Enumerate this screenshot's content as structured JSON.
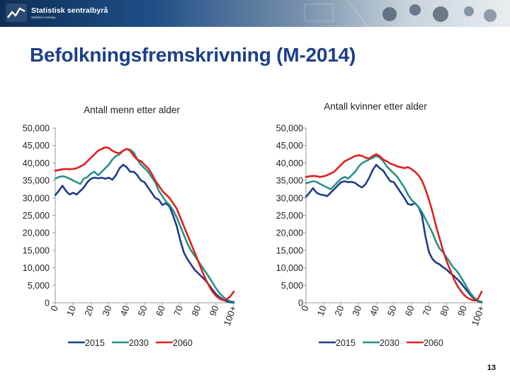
{
  "header": {
    "org_name": "Statistisk sentralbyrå",
    "org_sub": "Statistics Norway"
  },
  "slide": {
    "title": "Befolkningsfremskrivning (M-2014)",
    "page_number": "13"
  },
  "colors": {
    "title": "#1c3f8a",
    "series_2015": "#1f3c8c",
    "series_2030": "#2a9188",
    "series_2060": "#e0201b",
    "axis": "#9a9a9a"
  },
  "chart_data": [
    {
      "type": "line",
      "title": "Antall menn etter alder",
      "xlabel": "",
      "ylabel": "",
      "x_range": [
        0,
        100
      ],
      "x_tick_labels": [
        "0",
        "10",
        "20",
        "30",
        "40",
        "50",
        "60",
        "70",
        "80",
        "90",
        "100+"
      ],
      "ylim": [
        0,
        50000
      ],
      "y_tick_labels": [
        "0",
        "5,000",
        "10,000",
        "15,000",
        "20,000",
        "25,000",
        "30,000",
        "35,000",
        "40,000",
        "45,000",
        "50,000"
      ],
      "grid": false,
      "legend": [
        "2015",
        "2030",
        "2060"
      ],
      "legend_position": "bottom",
      "series": [
        {
          "name": "2015",
          "x": [
            0,
            2,
            4,
            6,
            8,
            10,
            12,
            14,
            16,
            18,
            20,
            22,
            24,
            26,
            28,
            30,
            32,
            34,
            36,
            38,
            40,
            42,
            44,
            46,
            48,
            50,
            52,
            54,
            56,
            58,
            60,
            62,
            64,
            66,
            68,
            70,
            72,
            74,
            76,
            78,
            80,
            82,
            84,
            86,
            88,
            90,
            92,
            94,
            96,
            98,
            100
          ],
          "y": [
            30800,
            32000,
            33500,
            32000,
            31000,
            31500,
            31000,
            32000,
            33000,
            34500,
            35500,
            35800,
            35600,
            35800,
            35500,
            35800,
            35200,
            36500,
            38500,
            39500,
            38800,
            37500,
            37500,
            36500,
            35000,
            34500,
            33000,
            31500,
            30000,
            29500,
            28000,
            28500,
            27500,
            25000,
            22000,
            18000,
            14500,
            12500,
            11000,
            9500,
            8500,
            7500,
            6500,
            5200,
            3800,
            2500,
            1600,
            900,
            400,
            150,
            60
          ]
        },
        {
          "name": "2030",
          "x": [
            0,
            2,
            4,
            6,
            8,
            10,
            12,
            14,
            16,
            18,
            20,
            22,
            24,
            26,
            28,
            30,
            32,
            34,
            36,
            38,
            40,
            42,
            44,
            46,
            48,
            50,
            52,
            54,
            56,
            58,
            60,
            62,
            64,
            66,
            68,
            70,
            72,
            74,
            76,
            78,
            80,
            82,
            84,
            86,
            88,
            90,
            92,
            94,
            96,
            98,
            100
          ],
          "y": [
            35500,
            36000,
            36200,
            36000,
            35500,
            35000,
            34500,
            34000,
            35500,
            36000,
            37000,
            37500,
            36500,
            37500,
            38500,
            39500,
            41000,
            42000,
            42500,
            43500,
            44000,
            43800,
            43000,
            41000,
            39500,
            38500,
            37500,
            36000,
            34500,
            32000,
            30500,
            29000,
            28000,
            26500,
            24500,
            22000,
            19500,
            17000,
            15000,
            13500,
            12000,
            10500,
            9000,
            7500,
            5800,
            4200,
            2800,
            1700,
            900,
            450,
            300
          ]
        },
        {
          "name": "2060",
          "x": [
            0,
            2,
            4,
            6,
            8,
            10,
            12,
            14,
            16,
            18,
            20,
            22,
            24,
            26,
            28,
            30,
            32,
            34,
            36,
            38,
            40,
            42,
            44,
            46,
            48,
            50,
            52,
            54,
            56,
            58,
            60,
            62,
            64,
            66,
            68,
            70,
            72,
            74,
            76,
            78,
            80,
            82,
            84,
            86,
            88,
            90,
            92,
            94,
            96,
            98,
            100
          ],
          "y": [
            37800,
            38000,
            38200,
            38300,
            38200,
            38300,
            38500,
            39000,
            39500,
            40500,
            41500,
            42500,
            43500,
            44000,
            44500,
            44300,
            43500,
            43000,
            42800,
            43500,
            44000,
            43500,
            42000,
            41000,
            40500,
            39500,
            38500,
            37000,
            35000,
            33500,
            32000,
            31000,
            30000,
            28500,
            27000,
            24500,
            22000,
            19500,
            17000,
            14500,
            12000,
            9500,
            7000,
            5000,
            3200,
            2000,
            1200,
            700,
            1000,
            1800,
            3200
          ]
        }
      ]
    },
    {
      "type": "line",
      "title": "Antall kvinner etter alder",
      "xlabel": "",
      "ylabel": "",
      "x_range": [
        0,
        100
      ],
      "x_tick_labels": [
        "0",
        "10",
        "20",
        "30",
        "40",
        "50",
        "60",
        "70",
        "80",
        "90",
        "100+"
      ],
      "ylim": [
        0,
        50000
      ],
      "y_tick_labels": [
        "0",
        "5,000",
        "10,000",
        "15,000",
        "20,000",
        "25,000",
        "30,000",
        "35,000",
        "40,000",
        "45,000",
        "50,000"
      ],
      "grid": false,
      "legend": [
        "2015",
        "2030",
        "2060"
      ],
      "legend_position": "bottom",
      "series": [
        {
          "name": "2015",
          "x": [
            0,
            2,
            4,
            6,
            8,
            10,
            12,
            14,
            16,
            18,
            20,
            22,
            24,
            26,
            28,
            30,
            32,
            34,
            36,
            38,
            40,
            42,
            44,
            46,
            48,
            50,
            52,
            54,
            56,
            58,
            60,
            62,
            64,
            66,
            68,
            70,
            72,
            74,
            76,
            78,
            80,
            82,
            84,
            86,
            88,
            90,
            92,
            94,
            96,
            98,
            100
          ],
          "y": [
            30300,
            31500,
            32800,
            31500,
            31000,
            30800,
            30500,
            31500,
            32500,
            33500,
            34500,
            34800,
            34500,
            34600,
            34300,
            33500,
            33000,
            34000,
            35800,
            38000,
            39500,
            38500,
            37800,
            36200,
            34800,
            34500,
            33000,
            31500,
            30000,
            28300,
            28000,
            28500,
            27500,
            25000,
            19000,
            14500,
            12500,
            11500,
            11000,
            10200,
            9500,
            8500,
            7800,
            6800,
            5800,
            4500,
            3200,
            2000,
            1000,
            400,
            150
          ]
        },
        {
          "name": "2030",
          "x": [
            0,
            2,
            4,
            6,
            8,
            10,
            12,
            14,
            16,
            18,
            20,
            22,
            24,
            26,
            28,
            30,
            32,
            34,
            36,
            38,
            40,
            42,
            44,
            46,
            48,
            50,
            52,
            54,
            56,
            58,
            60,
            62,
            64,
            66,
            68,
            70,
            72,
            74,
            76,
            78,
            80,
            82,
            84,
            86,
            88,
            90,
            92,
            94,
            96,
            98,
            100
          ],
          "y": [
            34200,
            34500,
            34800,
            34600,
            34000,
            33500,
            33000,
            32500,
            33500,
            34500,
            35500,
            36000,
            35500,
            36500,
            37500,
            39000,
            40000,
            40500,
            41000,
            41500,
            42000,
            41500,
            40500,
            39000,
            38000,
            37000,
            36000,
            34500,
            33000,
            31000,
            29500,
            28500,
            27500,
            26000,
            24000,
            22000,
            20000,
            17500,
            15500,
            14500,
            13000,
            11500,
            10000,
            9000,
            7500,
            5800,
            4000,
            2500,
            1300,
            600,
            300
          ]
        },
        {
          "name": "2060",
          "x": [
            0,
            2,
            4,
            6,
            8,
            10,
            12,
            14,
            16,
            18,
            20,
            22,
            24,
            26,
            28,
            30,
            32,
            34,
            36,
            38,
            40,
            42,
            44,
            46,
            48,
            50,
            52,
            54,
            56,
            58,
            60,
            62,
            64,
            66,
            68,
            70,
            72,
            74,
            76,
            78,
            80,
            82,
            84,
            86,
            88,
            90,
            92,
            94,
            96,
            98,
            100
          ],
          "y": [
            36000,
            36200,
            36300,
            36200,
            36000,
            36200,
            36500,
            37000,
            37500,
            38500,
            39500,
            40500,
            41000,
            41500,
            42000,
            42200,
            42000,
            41500,
            41300,
            42000,
            42500,
            42000,
            41000,
            40500,
            39800,
            39500,
            39000,
            38800,
            38500,
            38800,
            38300,
            37500,
            36500,
            35000,
            32500,
            29500,
            26000,
            22000,
            18500,
            15000,
            12000,
            9500,
            7000,
            5000,
            3500,
            2200,
            1400,
            900,
            600,
            1200,
            3200
          ]
        }
      ]
    }
  ]
}
